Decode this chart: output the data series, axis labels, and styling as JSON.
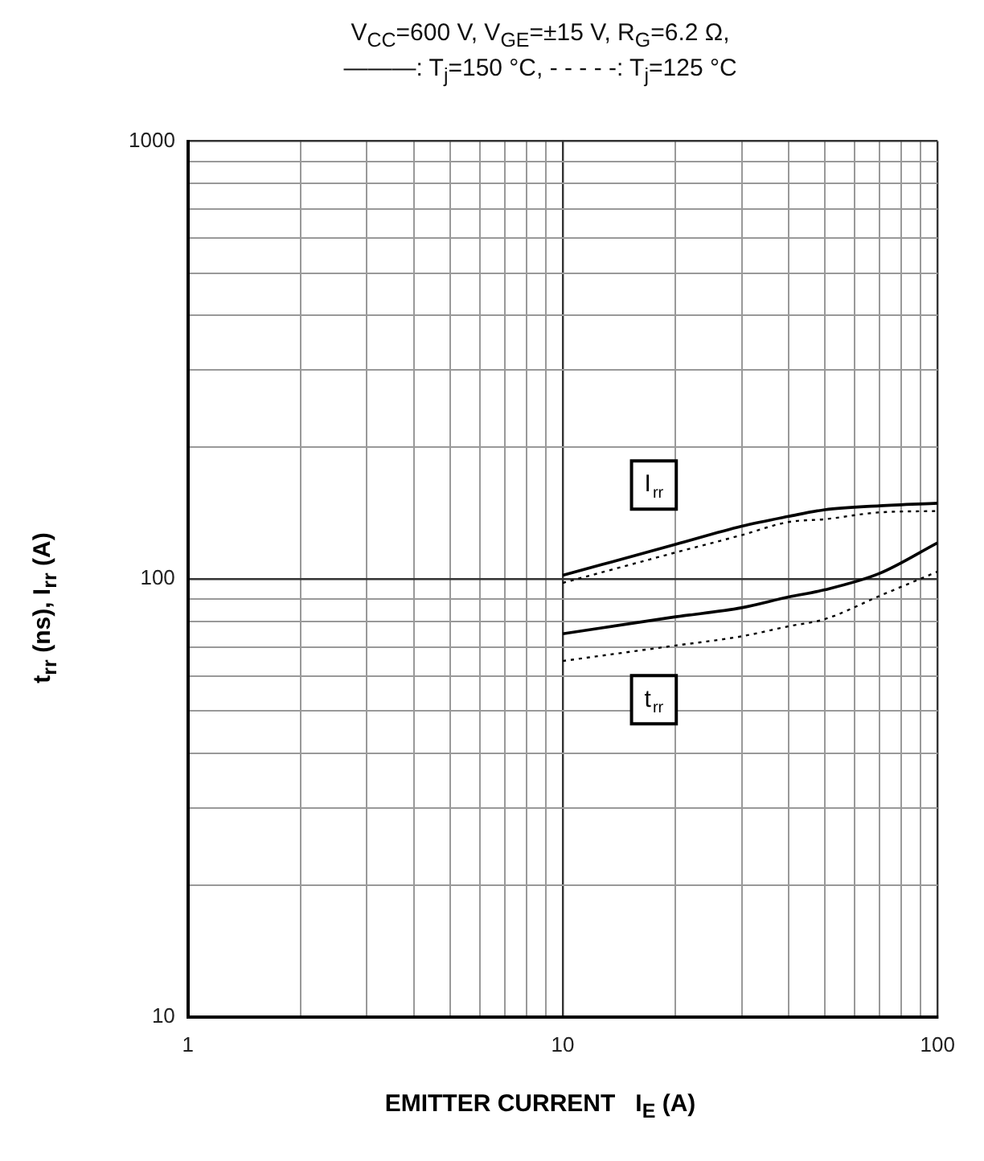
{
  "chart_data": {
    "type": "line",
    "title": "V$_{CC}$=600 V, V$_{GE}$=±15 V, R$_{G}$=6.2 Ω,",
    "subtitle": "———: T$_{j}$=150 °C, - - - - -: T$_{j}$=125 °C",
    "xlabel": "EMITTER CURRENT   I$_{E}$ (A)",
    "ylabel": "t$_{rr}$ (ns), I$_{rr}$ (A)",
    "series": [
      {
        "color": "#000000",
        "line_style": "solid",
        "x": [
          10,
          20,
          30,
          40,
          50,
          70,
          100
        ],
        "values": [
          102,
          120,
          132,
          139,
          144,
          147,
          149
        ]
      },
      {
        "color": "#000000",
        "line_style": "dotted",
        "x": [
          10,
          20,
          30,
          40,
          50,
          70,
          100
        ],
        "values": [
          98,
          115,
          126,
          135,
          137,
          142,
          143
        ]
      },
      {
        "color": "#000000",
        "line_style": "solid",
        "x": [
          10,
          20,
          30,
          40,
          50,
          70,
          100
        ],
        "values": [
          75,
          82,
          86,
          91,
          94.5,
          103,
          121
        ]
      },
      {
        "color": "#000000",
        "line_style": "dotted",
        "x": [
          10,
          20,
          30,
          40,
          50,
          70,
          100
        ],
        "values": [
          65,
          70.5,
          74,
          78,
          81,
          91.5,
          104
        ]
      }
    ],
    "annotations": [
      {
        "text": "I$_{rr}$",
        "x": 17.5,
        "y": 164
      },
      {
        "text": "t$_{rr}$",
        "x": 17.5,
        "y": 53
      }
    ],
    "log": "xy",
    "xlim": [
      1,
      100
    ],
    "ylim": [
      10,
      1000
    ],
    "xticks": [
      1,
      10,
      100
    ],
    "yticks": [
      10,
      100,
      1000
    ],
    "grid": true,
    "marker": "none",
    "legend": false
  }
}
